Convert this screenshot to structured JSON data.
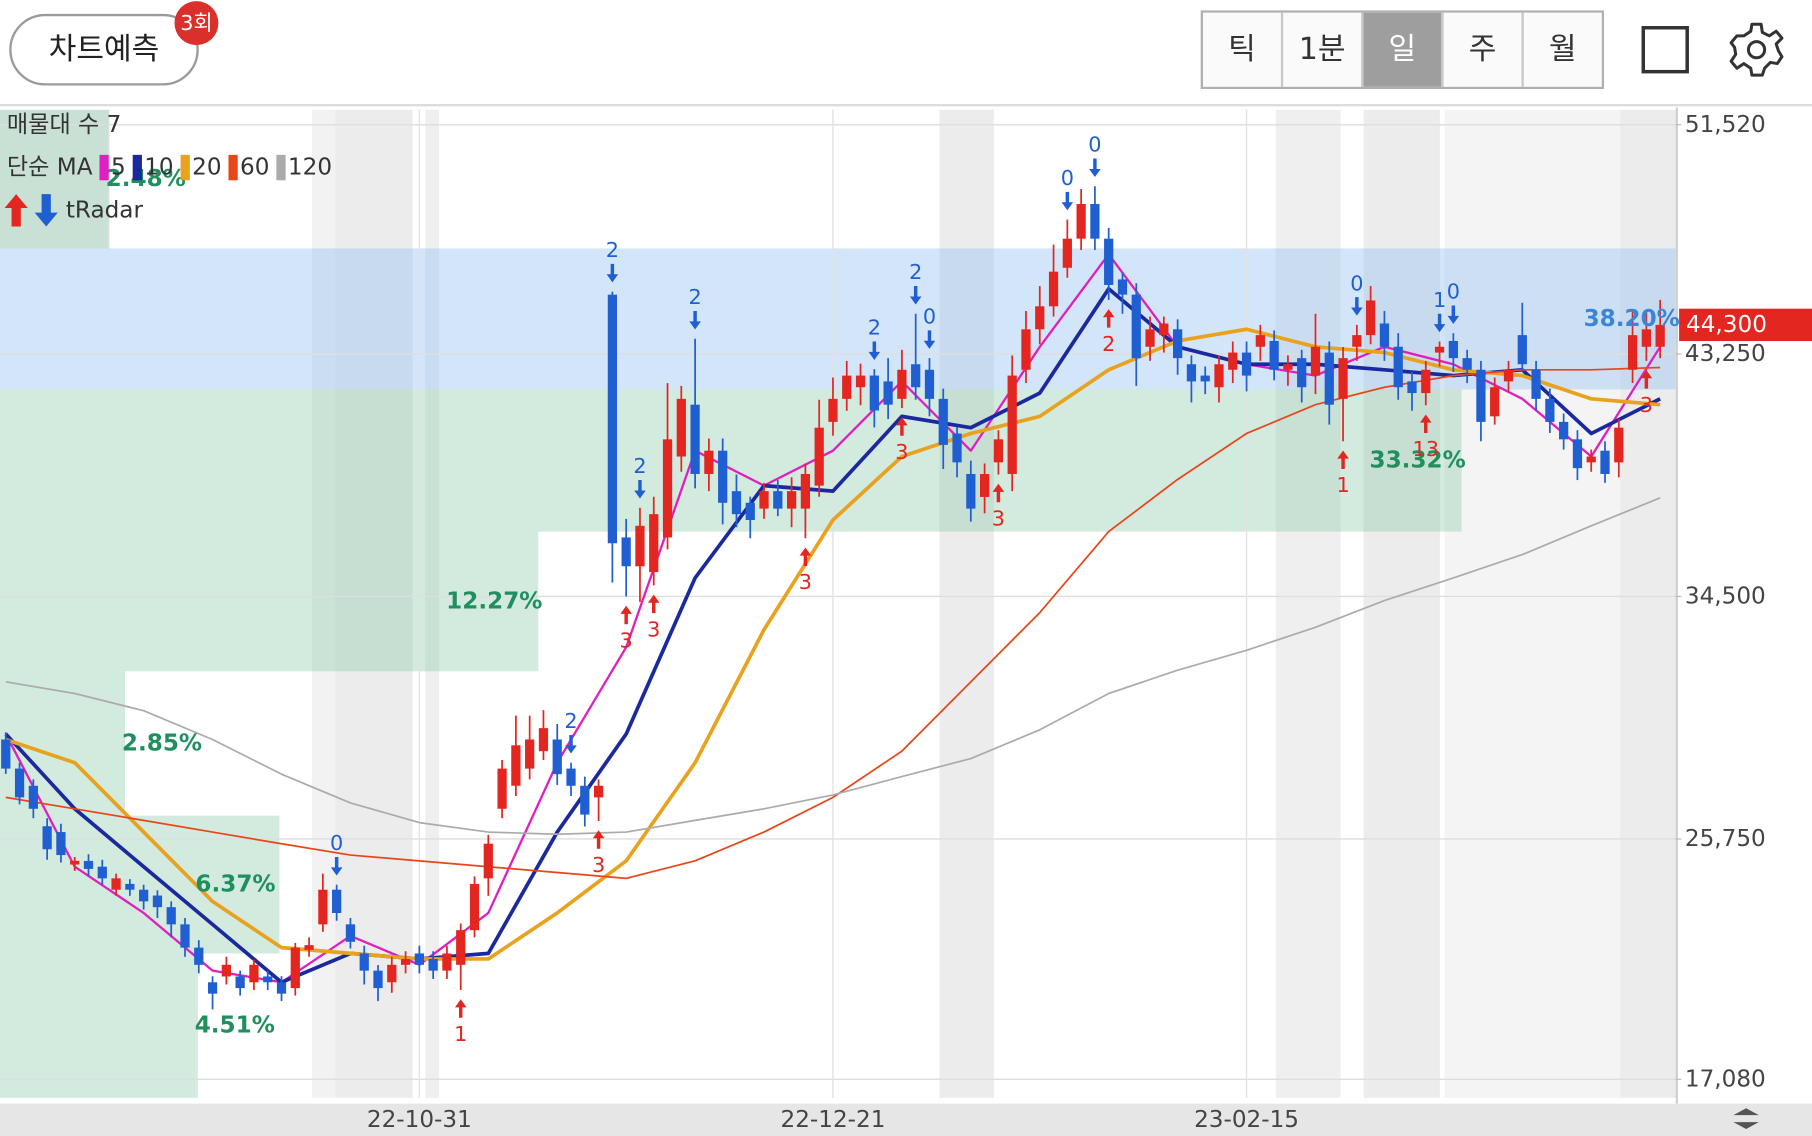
{
  "header": {
    "predict_button": "차트예측",
    "badge": "3회",
    "tabs": [
      "틱",
      "1분",
      "일",
      "주",
      "월"
    ],
    "selected_tab": 2
  },
  "chart_data": {
    "type": "candlestick",
    "up_color": "#e3261f",
    "down_color": "#1f5fd2",
    "categories": [
      null,
      null,
      null,
      null,
      null,
      null,
      null,
      null,
      null,
      null,
      null,
      null,
      null,
      null,
      null,
      null,
      null,
      null,
      null,
      null,
      null,
      null,
      null,
      null,
      null,
      null,
      null,
      null,
      null,
      null,
      "22-10-31",
      null,
      null,
      null,
      null,
      null,
      null,
      null,
      null,
      null,
      null,
      null,
      null,
      null,
      null,
      null,
      null,
      null,
      null,
      null,
      null,
      null,
      null,
      null,
      null,
      null,
      null,
      null,
      null,
      null,
      "22-12-21",
      null,
      null,
      null,
      null,
      null,
      null,
      null,
      null,
      null,
      null,
      null,
      null,
      null,
      null,
      null,
      null,
      null,
      null,
      null,
      null,
      null,
      null,
      null,
      null,
      null,
      null,
      null,
      null,
      null,
      "23-02-15",
      null,
      null,
      null,
      null,
      null,
      null,
      null,
      null,
      null,
      null,
      null,
      null,
      null,
      null,
      null,
      null,
      null,
      null,
      null,
      null,
      null,
      null,
      null,
      null,
      null,
      null,
      null,
      null,
      null,
      null
    ],
    "open": [
      29340,
      28290,
      27670,
      26210,
      26000,
      24830,
      24960,
      24750,
      23920,
      24130,
      23920,
      23710,
      23290,
      22670,
      21830,
      20580,
      20790,
      20790,
      20580,
      20790,
      20580,
      20370,
      21750,
      22670,
      23920,
      22670,
      21620,
      21000,
      20580,
      21210,
      21620,
      21420,
      21000,
      21210,
      22460,
      24330,
      26840,
      27670,
      28290,
      28920,
      29340,
      28290,
      27670,
      27250,
      45390,
      36630,
      35590,
      35380,
      36630,
      39550,
      41420,
      38920,
      39760,
      38300,
      37880,
      37670,
      38300,
      37670,
      37670,
      38500,
      40800,
      41630,
      42050,
      42470,
      42260,
      41630,
      42880,
      42680,
      41630,
      40380,
      38920,
      38090,
      39340,
      38920,
      42680,
      44140,
      44970,
      46360,
      47410,
      48660,
      47410,
      45940,
      45390,
      43510,
      43930,
      44140,
      42880,
      42470,
      42050,
      42680,
      43300,
      43510,
      43720,
      42680,
      43100,
      42470,
      43300,
      41630,
      43510,
      43930,
      44350,
      43510,
      42260,
      41840,
      43300,
      43720,
      43100,
      42680,
      41000,
      42260,
      43930,
      42680,
      41630,
      40800,
      40170,
      39340,
      39760,
      39340,
      42680,
      43510,
      43510
    ],
    "high": [
      29600,
      28500,
      27900,
      26500,
      26300,
      25100,
      25200,
      25000,
      24500,
      24300,
      24100,
      23900,
      23500,
      22900,
      22100,
      20800,
      21500,
      21000,
      21400,
      21000,
      20800,
      22000,
      22200,
      24500,
      24100,
      22900,
      21900,
      21200,
      21500,
      21700,
      21900,
      21700,
      21900,
      22700,
      24400,
      25900,
      28600,
      30200,
      30200,
      30400,
      29900,
      28500,
      28000,
      27900,
      45500,
      37300,
      37700,
      38100,
      42200,
      42100,
      43800,
      40200,
      40200,
      38900,
      38100,
      38600,
      38700,
      38800,
      39300,
      41600,
      42400,
      43000,
      42900,
      42700,
      43100,
      43400,
      44700,
      43100,
      42000,
      40600,
      39400,
      39300,
      40500,
      43200,
      44800,
      45700,
      47200,
      48100,
      49200,
      49300,
      47800,
      46200,
      45800,
      44600,
      44600,
      44500,
      43200,
      42800,
      43200,
      43700,
      43700,
      44300,
      44100,
      43200,
      43400,
      44700,
      43700,
      43500,
      44300,
      45700,
      44800,
      44000,
      42600,
      43000,
      43700,
      44000,
      43400,
      43000,
      42400,
      43000,
      45100,
      43000,
      42000,
      41100,
      40500,
      39800,
      40100,
      40900,
      44800,
      44800,
      45200
    ],
    "low": [
      28100,
      27000,
      26500,
      25000,
      24900,
      24600,
      24400,
      24100,
      23700,
      23700,
      23200,
      22900,
      22200,
      21500,
      20900,
      19600,
      20500,
      20100,
      20300,
      20300,
      19900,
      20100,
      21500,
      22400,
      22800,
      21800,
      20500,
      19900,
      20200,
      20900,
      20900,
      20700,
      20700,
      20300,
      22200,
      23700,
      26500,
      27300,
      27900,
      28600,
      27700,
      27300,
      26200,
      26400,
      35000,
      34500,
      34300,
      34900,
      36200,
      39000,
      38400,
      38300,
      37100,
      37000,
      36600,
      37300,
      37400,
      37000,
      36600,
      38100,
      40300,
      41200,
      41400,
      40600,
      40900,
      41300,
      41600,
      41000,
      39100,
      38800,
      37200,
      37500,
      38900,
      38300,
      42200,
      43600,
      44600,
      46000,
      47000,
      47000,
      45200,
      44700,
      42100,
      43000,
      43300,
      42500,
      41500,
      41800,
      41500,
      42200,
      41900,
      43000,
      42300,
      42100,
      41500,
      41800,
      40700,
      40100,
      43000,
      43600,
      43000,
      41600,
      41200,
      41400,
      42800,
      42600,
      42200,
      40100,
      40700,
      41900,
      42600,
      41200,
      40400,
      39800,
      38700,
      39000,
      38600,
      38800,
      42200,
      43000,
      43100
    ],
    "close": [
      28290,
      27250,
      26840,
      25380,
      25170,
      24960,
      24670,
      24330,
      24330,
      23920,
      23500,
      23290,
      22670,
      21830,
      21210,
      20170,
      21210,
      20370,
      21210,
      20580,
      20170,
      21830,
      21920,
      23920,
      23080,
      22040,
      21000,
      20370,
      21210,
      21420,
      21210,
      21000,
      21620,
      22460,
      24130,
      25580,
      28290,
      29130,
      29340,
      29750,
      28090,
      27670,
      26630,
      27670,
      36420,
      35590,
      37050,
      37470,
      40170,
      41630,
      38920,
      39760,
      37880,
      37470,
      37260,
      38300,
      37670,
      38300,
      38920,
      40590,
      41630,
      42470,
      42470,
      41210,
      41420,
      42680,
      42050,
      41630,
      39970,
      39340,
      37670,
      38920,
      40170,
      42470,
      44140,
      44970,
      46220,
      47410,
      48660,
      47410,
      45740,
      45390,
      43100,
      44140,
      44350,
      43100,
      42260,
      42260,
      42880,
      43300,
      42470,
      43930,
      42680,
      42880,
      42050,
      43510,
      41420,
      43100,
      43930,
      45180,
      43510,
      42050,
      41840,
      42680,
      43510,
      43100,
      42680,
      40800,
      42050,
      42680,
      42880,
      41630,
      40800,
      40170,
      39130,
      39550,
      38920,
      40590,
      43930,
      44140,
      44300
    ],
    "ylim": [
      16410,
      52060
    ],
    "yticks": [
      {
        "value": 17080,
        "label": "17,080"
      },
      {
        "value": 25750,
        "label": "25,750"
      },
      {
        "value": 34500,
        "label": "34,500"
      },
      {
        "value": 43250,
        "label": "43,250"
      },
      {
        "value": 51520,
        "label": "51,520"
      }
    ],
    "grid": true,
    "last_price": {
      "value": 44300,
      "label": "44,300",
      "color": "#e3261f"
    },
    "ma_title": "단순 MA",
    "ma_x": [
      0,
      5,
      10,
      15,
      20,
      25,
      30,
      35,
      40,
      45,
      50,
      55,
      60,
      65,
      70,
      75,
      80,
      85,
      90,
      95,
      100,
      105,
      110,
      115,
      120
    ],
    "ma_series": [
      {
        "name": "5",
        "color": "#e01fc0",
        "width": 2,
        "values": [
          29540,
          24750,
          23080,
          21000,
          20580,
          22250,
          21210,
          23080,
          28500,
          32670,
          39760,
          38500,
          39760,
          42260,
          39760,
          43510,
          46850,
          43510,
          42880,
          42470,
          43510,
          42880,
          41630,
          39550,
          43510
        ]
      },
      {
        "name": "10",
        "color": "#1a2a9e",
        "width": 3.2,
        "values": [
          29540,
          26840,
          24750,
          22670,
          20580,
          21620,
          21420,
          21620,
          26000,
          29540,
          35170,
          38500,
          38300,
          41000,
          40590,
          41840,
          45600,
          43510,
          42880,
          42880,
          42680,
          42470,
          42680,
          40380,
          41630
        ]
      },
      {
        "name": "20",
        "color": "#e8a21e",
        "width": 3.2,
        "values": [
          29340,
          28500,
          26000,
          23500,
          21830,
          21620,
          21420,
          21420,
          23080,
          24960,
          28500,
          33300,
          37260,
          39550,
          40380,
          41000,
          42680,
          43720,
          44140,
          43510,
          43300,
          42680,
          42470,
          41630,
          41420
        ]
      },
      {
        "name": "60",
        "color": "#e8461a",
        "width": 1.5,
        "values": [
          27250,
          26840,
          26420,
          26000,
          25580,
          25170,
          24960,
          24750,
          24540,
          24330,
          24960,
          26000,
          27250,
          28920,
          31420,
          33920,
          36840,
          38720,
          40380,
          41420,
          42050,
          42470,
          42680,
          42680,
          42760
        ]
      },
      {
        "name": "120",
        "color": "#ababab",
        "width": 1.5,
        "values": [
          31420,
          31000,
          30380,
          29340,
          28090,
          27050,
          26340,
          26000,
          25920,
          26000,
          26420,
          26840,
          27340,
          28000,
          28650,
          29690,
          31000,
          31840,
          32560,
          33390,
          34350,
          35170,
          36010,
          37050,
          38060
        ]
      }
    ],
    "volume_profile": {
      "title": "매물대 수 7",
      "color": "rgba(140,200,168,0.38)",
      "max_color": "rgba(150,195,240,0.42)",
      "lows": [
        47060,
        41970,
        36840,
        31800,
        26590,
        21620,
        16410
      ],
      "highs": [
        52060,
        47060,
        41970,
        36840,
        31800,
        26590,
        21620
      ],
      "values": [
        2.48,
        38.2,
        33.32,
        12.27,
        2.85,
        6.37,
        4.51
      ],
      "value_labels": [
        "2.48%",
        "38.20%",
        "33.32%",
        "12.27%",
        "2.85%",
        "6.37%",
        "4.51%"
      ]
    },
    "signal_title": "tRadar",
    "signals": [
      {
        "index": 24,
        "direction": "down",
        "label": "0"
      },
      {
        "index": 41,
        "direction": "down",
        "label": "2"
      },
      {
        "index": 44,
        "direction": "down",
        "label": "2"
      },
      {
        "index": 46,
        "direction": "down",
        "label": "2"
      },
      {
        "index": 50,
        "direction": "down",
        "label": "2"
      },
      {
        "index": 63,
        "direction": "down",
        "label": "2"
      },
      {
        "index": 66,
        "direction": "down",
        "label": "2"
      },
      {
        "index": 67,
        "direction": "down",
        "label": "0"
      },
      {
        "index": 77,
        "direction": "down",
        "label": "0"
      },
      {
        "index": 79,
        "direction": "down",
        "label": "0"
      },
      {
        "index": 98,
        "direction": "down",
        "label": "0"
      },
      {
        "index": 104,
        "direction": "down",
        "label": "1"
      },
      {
        "index": 105,
        "direction": "down",
        "label": "0"
      },
      {
        "index": 33,
        "direction": "up",
        "label": "1"
      },
      {
        "index": 43,
        "direction": "up",
        "label": "3"
      },
      {
        "index": 45,
        "direction": "up",
        "label": "3"
      },
      {
        "index": 47,
        "direction": "up",
        "label": "3"
      },
      {
        "index": 58,
        "direction": "up",
        "label": "3"
      },
      {
        "index": 65,
        "direction": "up",
        "label": "3"
      },
      {
        "index": 72,
        "direction": "up",
        "label": "3"
      },
      {
        "index": 80,
        "direction": "up",
        "label": "2"
      },
      {
        "index": 97,
        "direction": "up",
        "label": "1"
      },
      {
        "index": 103,
        "direction": "up",
        "label": "13"
      },
      {
        "index": 119,
        "direction": "up",
        "label": "3"
      }
    ]
  }
}
